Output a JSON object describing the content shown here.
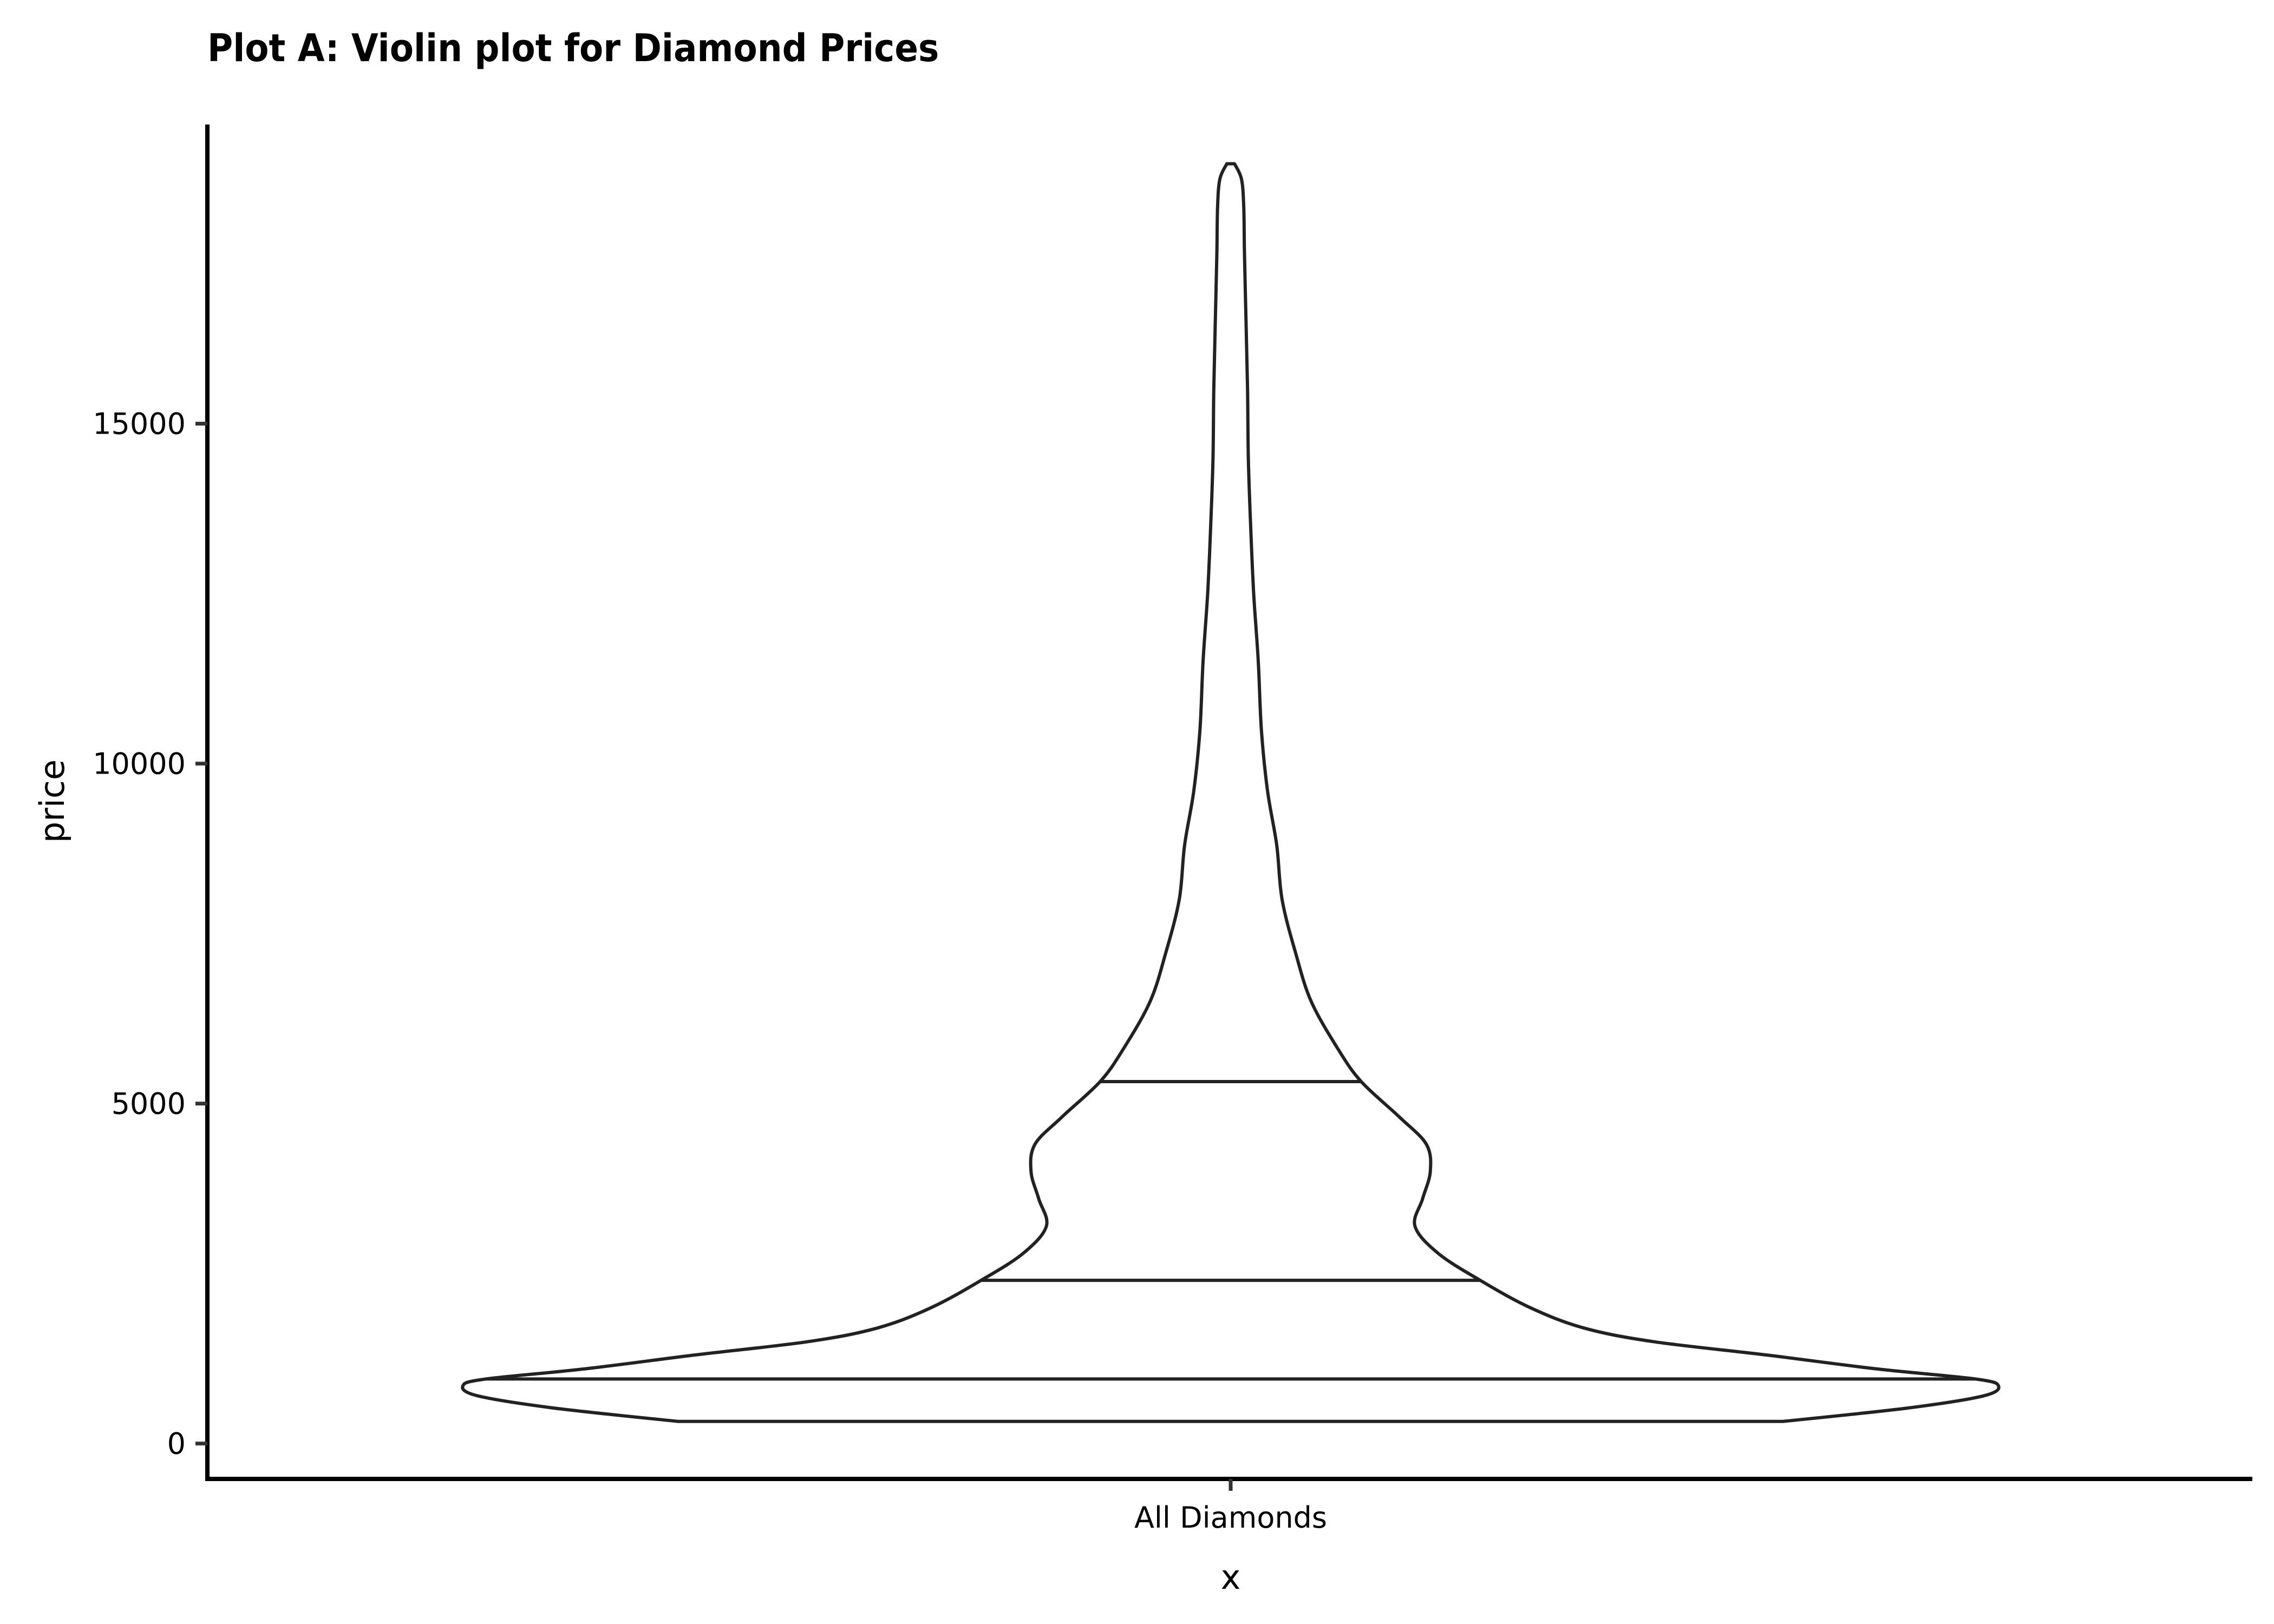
{
  "chart_data": {
    "type": "violin",
    "title": "Plot A: Violin plot for Diamond Prices",
    "xlabel": "x",
    "ylabel": "price",
    "categories": [
      "All Diamonds"
    ],
    "ylim": [
      -520,
      19400
    ],
    "y_ticks": [
      0,
      5000,
      10000,
      15000
    ],
    "y_tick_labels": [
      "0",
      "5000",
      "10000",
      "15000"
    ],
    "grid": false,
    "legend": "none",
    "data_range": [
      326,
      18823
    ],
    "draw_quantiles": [
      0.25,
      0.5,
      0.75
    ],
    "quantile_values": [
      950,
      2401,
      5324
    ],
    "density": [
      {
        "price": 326,
        "width": 0.72
      },
      {
        "price": 520,
        "width": 0.88
      },
      {
        "price": 700,
        "width": 0.98
      },
      {
        "price": 850,
        "width": 1.0
      },
      {
        "price": 950,
        "width": 0.97
      },
      {
        "price": 1100,
        "width": 0.84
      },
      {
        "price": 1300,
        "width": 0.7
      },
      {
        "price": 1500,
        "width": 0.55
      },
      {
        "price": 1700,
        "width": 0.46
      },
      {
        "price": 2000,
        "width": 0.39
      },
      {
        "price": 2401,
        "width": 0.325
      },
      {
        "price": 2800,
        "width": 0.27
      },
      {
        "price": 3200,
        "width": 0.24
      },
      {
        "price": 3600,
        "width": 0.25
      },
      {
        "price": 4000,
        "width": 0.26
      },
      {
        "price": 4400,
        "width": 0.255
      },
      {
        "price": 4800,
        "width": 0.22
      },
      {
        "price": 5324,
        "width": 0.17
      },
      {
        "price": 5800,
        "width": 0.14
      },
      {
        "price": 6500,
        "width": 0.105
      },
      {
        "price": 7200,
        "width": 0.085
      },
      {
        "price": 8000,
        "width": 0.067
      },
      {
        "price": 8800,
        "width": 0.06
      },
      {
        "price": 9600,
        "width": 0.048
      },
      {
        "price": 10500,
        "width": 0.04
      },
      {
        "price": 11500,
        "width": 0.036
      },
      {
        "price": 12500,
        "width": 0.03
      },
      {
        "price": 13500,
        "width": 0.026
      },
      {
        "price": 14500,
        "width": 0.023
      },
      {
        "price": 15500,
        "width": 0.022
      },
      {
        "price": 16500,
        "width": 0.02
      },
      {
        "price": 17500,
        "width": 0.018
      },
      {
        "price": 18200,
        "width": 0.017
      },
      {
        "price": 18600,
        "width": 0.014
      },
      {
        "price": 18823,
        "width": 0.005
      }
    ]
  }
}
